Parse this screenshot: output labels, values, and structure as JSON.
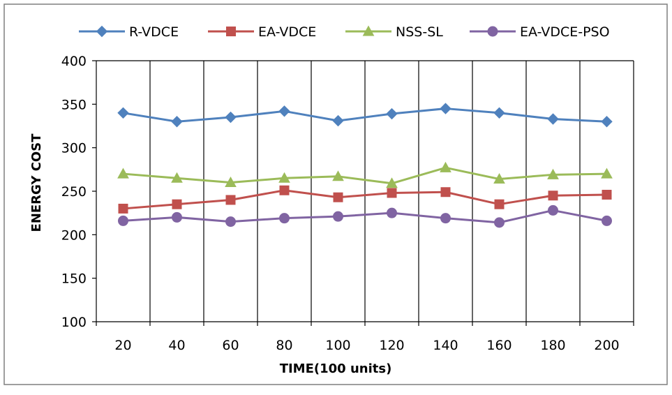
{
  "chart_data": {
    "type": "line",
    "title": "",
    "xlabel": "TIME(100 units)",
    "ylabel": "ENERGY COST",
    "categories": [
      "20",
      "40",
      "60",
      "80",
      "100",
      "120",
      "140",
      "160",
      "180",
      "200"
    ],
    "ylim": [
      100,
      400
    ],
    "yticks": [
      "100",
      "150",
      "200",
      "250",
      "300",
      "350",
      "400"
    ],
    "grid": "vertical lines between categories",
    "legend_position": "top",
    "series": [
      {
        "name": "R-VDCE",
        "color": "#4F81BD",
        "marker": "diamond",
        "values": [
          340,
          330,
          335,
          342,
          331,
          339,
          345,
          340,
          333,
          330
        ]
      },
      {
        "name": "EA-VDCE",
        "color": "#C0504D",
        "marker": "square",
        "values": [
          230,
          235,
          240,
          251,
          243,
          248,
          249,
          235,
          245,
          246
        ]
      },
      {
        "name": "NSS-SL",
        "color": "#9BBB59",
        "marker": "triangle",
        "values": [
          270,
          265,
          260,
          265,
          267,
          259,
          277,
          264,
          269,
          270
        ]
      },
      {
        "name": "EA-VDCE-PSO",
        "color": "#8064A2",
        "marker": "circle",
        "values": [
          216,
          220,
          215,
          219,
          221,
          225,
          219,
          214,
          228,
          216
        ]
      }
    ]
  }
}
